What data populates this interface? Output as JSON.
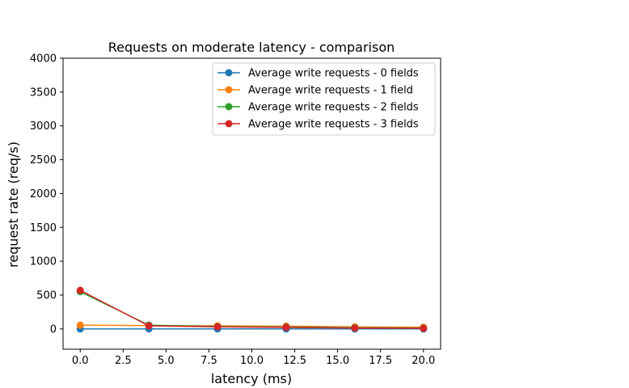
{
  "chart_data": {
    "type": "line",
    "title": "Requests on moderate latency - comparison",
    "xlabel": "latency (ms)",
    "ylabel": "request rate (req/s)",
    "xlim": [
      -1,
      21
    ],
    "ylim": [
      -300,
      4000
    ],
    "xticks": [
      0.0,
      2.5,
      5.0,
      7.5,
      10.0,
      12.5,
      15.0,
      17.5,
      20.0
    ],
    "xtick_labels": [
      "0.0",
      "2.5",
      "5.0",
      "7.5",
      "10.0",
      "12.5",
      "15.0",
      "17.5",
      "20.0"
    ],
    "yticks": [
      0,
      500,
      1000,
      1500,
      2000,
      2500,
      3000,
      3500,
      4000
    ],
    "ytick_labels": [
      "0",
      "500",
      "1000",
      "1500",
      "2000",
      "2500",
      "3000",
      "3500",
      "4000"
    ],
    "grid": false,
    "legend_position": "top-right",
    "x": [
      0,
      4,
      8,
      12,
      16,
      20
    ],
    "series": [
      {
        "name": "Average write requests - 0 fields",
        "color": "#1f77b4",
        "values": [
          0,
          0,
          0,
          0,
          0,
          0
        ]
      },
      {
        "name": "Average write requests - 1 field",
        "color": "#ff7f0e",
        "values": [
          55,
          50,
          45,
          40,
          30,
          25
        ]
      },
      {
        "name": "Average write requests - 2 fields",
        "color": "#2ca02c",
        "values": [
          550,
          55,
          35,
          28,
          18,
          12
        ]
      },
      {
        "name": "Average write requests - 3 fields",
        "color": "#d62728",
        "values": [
          570,
          45,
          30,
          22,
          12,
          8
        ]
      }
    ]
  }
}
